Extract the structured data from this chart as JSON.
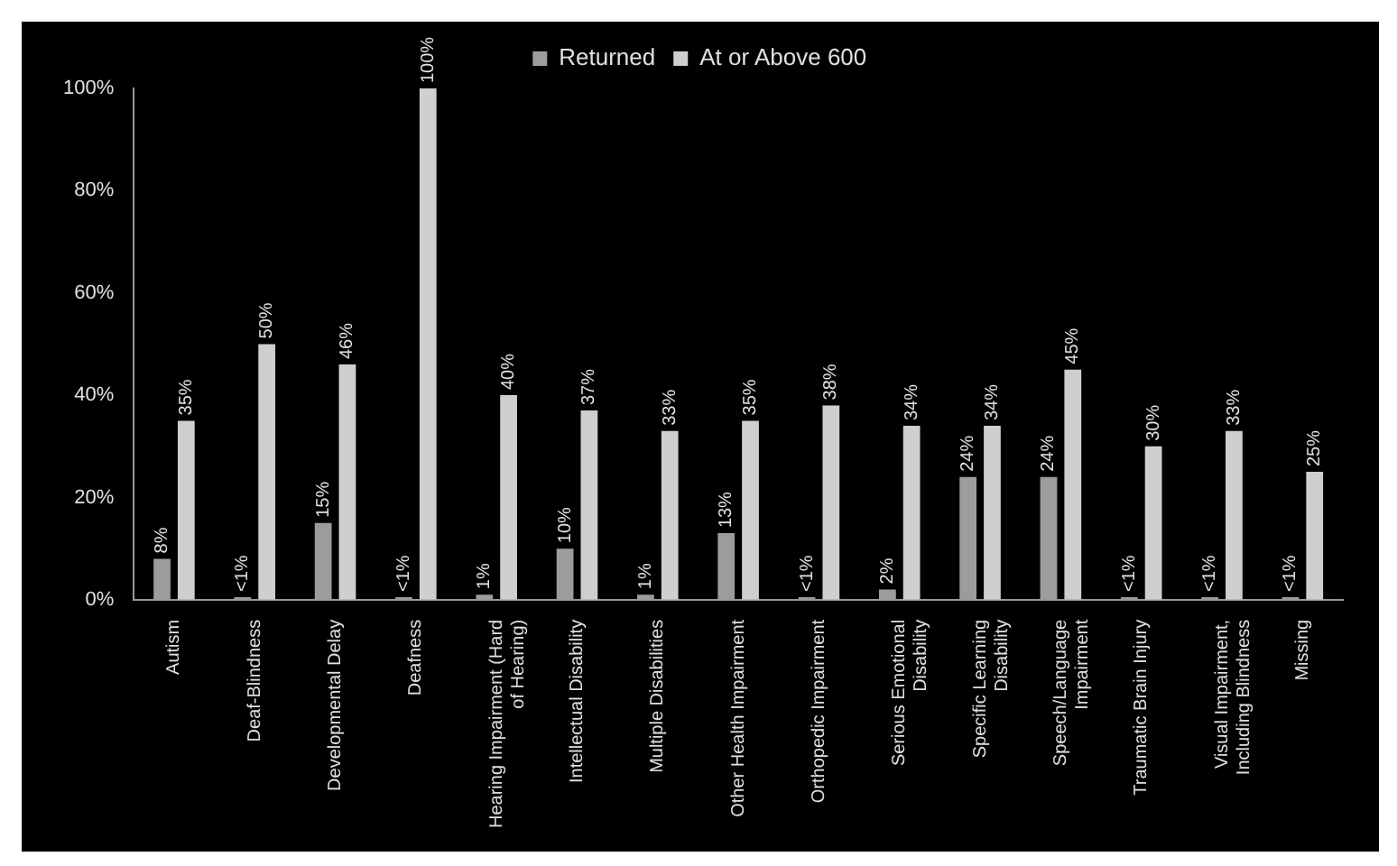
{
  "chart_data": {
    "type": "bar",
    "categories": [
      "Autism",
      "Deaf-Blindness",
      "Developmental Delay",
      "Deafness",
      "Hearing Impairment (Hard of Hearing)",
      "Intellectual Disability",
      "Multiple Disabilities",
      "Other Health Impairment",
      "Orthopedic Impairment",
      "Serious Emotional Disability",
      "Specific Learning Disability",
      "Speech/Language Impairment",
      "Traumatic Brain Injury",
      "Visual Impairment, Including Blindness",
      "Missing"
    ],
    "series": [
      {
        "name": "Returned",
        "color": "#9c9c9c",
        "values": [
          8,
          0.5,
          15,
          0.5,
          1,
          10,
          1,
          13,
          0.5,
          2,
          24,
          24,
          0.5,
          0.5,
          0.5
        ],
        "value_labels": [
          "8%",
          "<1%",
          "15%",
          "<1%",
          "1%",
          "10%",
          "1%",
          "13%",
          "<1%",
          "2%",
          "24%",
          "24%",
          "<1%",
          "<1%",
          "<1%"
        ]
      },
      {
        "name": "At or Above 600",
        "color": "#cfcfcf",
        "values": [
          35,
          50,
          46,
          100,
          40,
          37,
          33,
          35,
          38,
          34,
          34,
          45,
          30,
          33,
          25
        ],
        "value_labels": [
          "35%",
          "50%",
          "46%",
          "100%",
          "40%",
          "37%",
          "33%",
          "35%",
          "38%",
          "34%",
          "34%",
          "45%",
          "30%",
          "33%",
          "25%"
        ]
      }
    ],
    "ylim": [
      0,
      100
    ],
    "yticks": [
      {
        "value": 0,
        "label": "0%"
      },
      {
        "value": 20,
        "label": "20%"
      },
      {
        "value": 40,
        "label": "40%"
      },
      {
        "value": 60,
        "label": "60%"
      },
      {
        "value": 80,
        "label": "80%"
      },
      {
        "value": 100,
        "label": "100%"
      }
    ],
    "grid": false,
    "legend": "top"
  }
}
